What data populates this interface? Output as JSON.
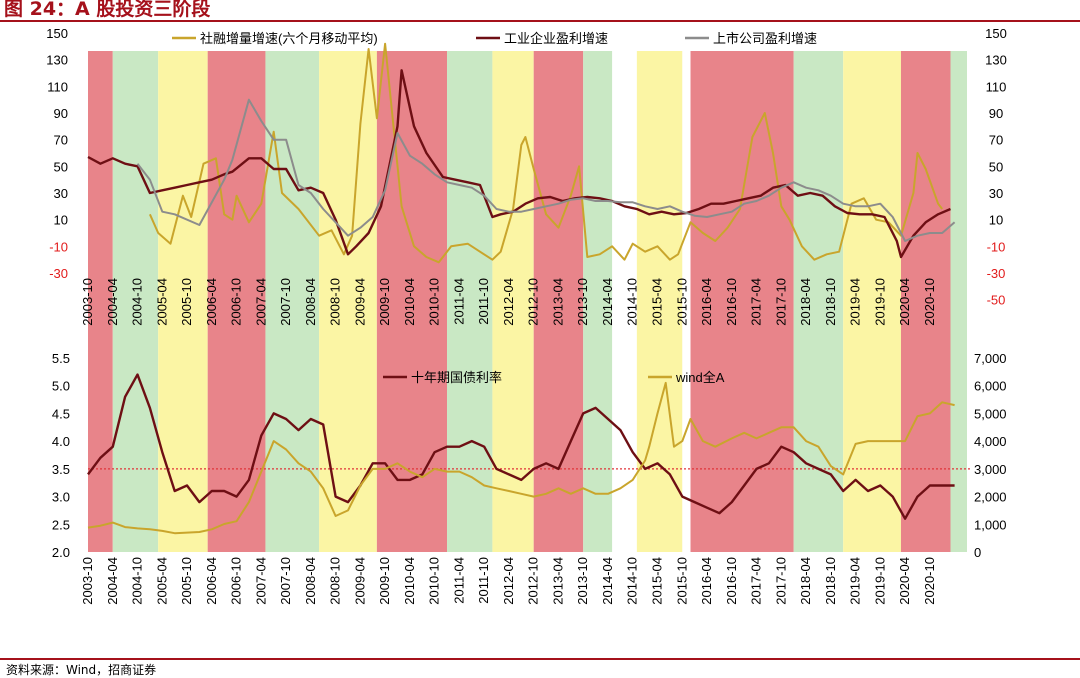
{
  "title": "图 24：A 股投资三阶段",
  "source": "资料来源：Wind，招商证券",
  "colors": {
    "red": "#e8848a",
    "green": "#c9e8c4",
    "yellow": "#fbf5a4",
    "gold": "#c9a52c",
    "maroon": "#6e0f14",
    "gray": "#8c8c8c"
  },
  "chart_data": [
    {
      "type": "line",
      "panel": "top",
      "yleft": {
        "min": -30,
        "max": 150,
        "ticks": [
          "150",
          "130",
          "110",
          "90",
          "70",
          "50",
          "30",
          "10",
          "-10",
          "-30"
        ]
      },
      "yright": {
        "ticks": [
          "150",
          "130",
          "110",
          "90",
          "70",
          "50",
          "30",
          "10",
          "-10",
          "-30",
          "-50"
        ]
      },
      "x_ticks": [
        "2003-10",
        "2004-04",
        "2004-10",
        "2005-04",
        "2005-10",
        "2006-04",
        "2006-10",
        "2007-04",
        "2007-10",
        "2008-04",
        "2008-10",
        "2009-04",
        "2009-10",
        "2010-04",
        "2010-10",
        "2011-04",
        "2011-10",
        "2012-04",
        "2012-10",
        "2013-04",
        "2013-10",
        "2014-04",
        "2014-10",
        "2015-04",
        "2015-10",
        "2016-04",
        "2016-10",
        "2017-04",
        "2017-10",
        "2018-04",
        "2018-10",
        "2019-04",
        "2019-10",
        "2020-04",
        "2020-10"
      ],
      "phases": [
        {
          "start": "2003-10",
          "end": "2004-04",
          "color": "red"
        },
        {
          "start": "2004-04",
          "end": "2005-03",
          "color": "green"
        },
        {
          "start": "2005-03",
          "end": "2006-03",
          "color": "yellow"
        },
        {
          "start": "2006-03",
          "end": "2007-05",
          "color": "red"
        },
        {
          "start": "2007-05",
          "end": "2008-06",
          "color": "green"
        },
        {
          "start": "2008-06",
          "end": "2009-08",
          "color": "yellow"
        },
        {
          "start": "2009-08",
          "end": "2011-01",
          "color": "red"
        },
        {
          "start": "2011-01",
          "end": "2011-12",
          "color": "green"
        },
        {
          "start": "2011-12",
          "end": "2012-10",
          "color": "yellow"
        },
        {
          "start": "2012-10",
          "end": "2013-10",
          "color": "red"
        },
        {
          "start": "2013-10",
          "end": "2014-05",
          "color": "green"
        },
        {
          "start": "2014-11",
          "end": "2015-10",
          "color": "yellow"
        },
        {
          "start": "2015-12",
          "end": "2018-01",
          "color": "red"
        },
        {
          "start": "2018-01",
          "end": "2019-01",
          "color": "green"
        },
        {
          "start": "2019-01",
          "end": "2020-03",
          "color": "yellow"
        },
        {
          "start": "2020-03",
          "end": "2021-03",
          "color": "red"
        },
        {
          "start": "2021-03",
          "end": "2021-07",
          "color": "green"
        }
      ],
      "series": [
        {
          "name": "社融增量增速(六个月移动平均)",
          "color": "gold",
          "axis": "left",
          "x": [
            "2005-01",
            "2005-03",
            "2005-06",
            "2005-09",
            "2005-11",
            "2006-02",
            "2006-05",
            "2006-07",
            "2006-09",
            "2006-10",
            "2007-01",
            "2007-04",
            "2007-07",
            "2007-09",
            "2008-01",
            "2008-06",
            "2008-09",
            "2008-12",
            "2009-02",
            "2009-04",
            "2009-06",
            "2009-08",
            "2009-10",
            "2010-02",
            "2010-05",
            "2010-08",
            "2010-11",
            "2011-02",
            "2011-06",
            "2011-09",
            "2011-12",
            "2012-02",
            "2012-05",
            "2012-07",
            "2012-08",
            "2012-10",
            "2013-01",
            "2013-04",
            "2013-07",
            "2013-09",
            "2013-11",
            "2014-02",
            "2014-05",
            "2014-08",
            "2014-10",
            "2015-01",
            "2015-04",
            "2015-07",
            "2015-09",
            "2015-12",
            "2016-03",
            "2016-06",
            "2016-09",
            "2016-12",
            "2017-03",
            "2017-06",
            "2017-08",
            "2017-10",
            "2017-12",
            "2018-03",
            "2018-06",
            "2018-09",
            "2018-12",
            "2019-03",
            "2019-06",
            "2019-09",
            "2019-12",
            "2020-03",
            "2020-06",
            "2020-07",
            "2020-09",
            "2020-12",
            "2021-01"
          ],
          "y": [
            14,
            0,
            -8,
            28,
            12,
            52,
            56,
            14,
            10,
            28,
            8,
            22,
            76,
            30,
            18,
            -2,
            2,
            -16,
            -2,
            82,
            138,
            86,
            142,
            20,
            -10,
            -18,
            -22,
            -10,
            -8,
            -14,
            -20,
            -14,
            18,
            66,
            72,
            48,
            14,
            4,
            28,
            50,
            -18,
            -16,
            -10,
            -20,
            -8,
            -14,
            -10,
            -20,
            -16,
            8,
            0,
            -6,
            4,
            18,
            72,
            90,
            60,
            20,
            10,
            -10,
            -20,
            -16,
            -14,
            22,
            26,
            10,
            8,
            -2,
            30,
            60,
            48,
            22,
            18
          ]
        },
        {
          "name": "工业企业盈利增速",
          "color": "maroon",
          "axis": "left",
          "x": [
            "2003-10",
            "2004-01",
            "2004-04",
            "2004-07",
            "2004-10",
            "2005-01",
            "2005-04",
            "2005-07",
            "2005-10",
            "2006-01",
            "2006-04",
            "2006-07",
            "2006-09",
            "2007-01",
            "2007-04",
            "2007-07",
            "2007-10",
            "2008-01",
            "2008-04",
            "2008-07",
            "2008-10",
            "2009-01",
            "2009-03",
            "2009-06",
            "2009-09",
            "2010-01",
            "2010-02",
            "2010-05",
            "2010-08",
            "2010-12",
            "2011-03",
            "2011-06",
            "2011-09",
            "2011-12",
            "2012-02",
            "2012-05",
            "2012-08",
            "2012-11",
            "2013-02",
            "2013-05",
            "2013-08",
            "2013-11",
            "2014-02",
            "2014-05",
            "2014-08",
            "2014-11",
            "2015-02",
            "2015-05",
            "2015-08",
            "2015-11",
            "2016-02",
            "2016-05",
            "2016-08",
            "2016-11",
            "2017-02",
            "2017-05",
            "2017-08",
            "2017-11",
            "2018-02",
            "2018-05",
            "2018-08",
            "2018-11",
            "2019-02",
            "2019-05",
            "2019-08",
            "2019-11",
            "2020-02",
            "2020-03",
            "2020-06",
            "2020-09",
            "2020-12",
            "2021-03"
          ],
          "y": [
            57,
            52,
            56,
            52,
            50,
            30,
            32,
            34,
            36,
            38,
            40,
            44,
            46,
            56,
            56,
            48,
            48,
            32,
            34,
            30,
            10,
            -16,
            -10,
            0,
            20,
            80,
            122,
            80,
            60,
            42,
            40,
            38,
            36,
            12,
            14,
            16,
            22,
            26,
            27,
            24,
            26,
            27,
            26,
            24,
            20,
            18,
            14,
            16,
            14,
            15,
            18,
            22,
            22,
            24,
            26,
            28,
            34,
            36,
            28,
            30,
            28,
            20,
            15,
            14,
            14,
            12,
            -6,
            -18,
            -2,
            8,
            14,
            18
          ]
        },
        {
          "name": "上市公司盈利增速",
          "color": "gray",
          "axis": "left",
          "x": [
            "2004-10",
            "2005-01",
            "2005-04",
            "2005-07",
            "2006-01",
            "2006-07",
            "2006-09",
            "2007-01",
            "2007-04",
            "2007-07",
            "2007-10",
            "2008-01",
            "2008-04",
            "2008-07",
            "2008-10",
            "2009-01",
            "2009-04",
            "2009-07",
            "2009-10",
            "2010-01",
            "2010-04",
            "2010-07",
            "2010-10",
            "2011-01",
            "2011-04",
            "2011-07",
            "2011-10",
            "2012-01",
            "2012-04",
            "2012-07",
            "2012-10",
            "2013-01",
            "2013-04",
            "2013-07",
            "2013-10",
            "2014-01",
            "2014-04",
            "2014-07",
            "2014-10",
            "2015-01",
            "2015-04",
            "2015-07",
            "2015-10",
            "2016-01",
            "2016-04",
            "2016-07",
            "2016-10",
            "2017-01",
            "2017-04",
            "2017-07",
            "2017-10",
            "2018-01",
            "2018-04",
            "2018-07",
            "2018-10",
            "2019-01",
            "2019-04",
            "2019-07",
            "2019-10",
            "2020-01",
            "2020-04",
            "2020-07",
            "2020-10",
            "2021-01",
            "2021-04"
          ],
          "y": [
            52,
            40,
            16,
            14,
            6,
            40,
            55,
            100,
            84,
            70,
            70,
            36,
            30,
            18,
            8,
            -2,
            4,
            12,
            32,
            75,
            58,
            52,
            44,
            38,
            36,
            34,
            28,
            18,
            16,
            16,
            18,
            20,
            22,
            25,
            26,
            24,
            24,
            23,
            23,
            20,
            18,
            20,
            16,
            13,
            12,
            14,
            16,
            22,
            24,
            28,
            34,
            38,
            34,
            32,
            28,
            22,
            20,
            20,
            22,
            12,
            -6,
            -2,
            0,
            0,
            8
          ]
        }
      ]
    },
    {
      "type": "line",
      "panel": "bottom",
      "yleft": {
        "min": 2.0,
        "max": 5.5,
        "ticks": [
          "5.5",
          "5.0",
          "4.5",
          "4.0",
          "3.5",
          "3.0",
          "2.5",
          "2.0"
        ]
      },
      "yright": {
        "min": 0,
        "max": 7000,
        "ticks": [
          "7,000",
          "6,000",
          "5,000",
          "4,000",
          "3,000",
          "2,000",
          "1,000",
          "0"
        ]
      },
      "reference_line": 3.5,
      "x_ticks": [
        "2003-10",
        "2004-04",
        "2004-10",
        "2005-04",
        "2005-10",
        "2006-04",
        "2006-10",
        "2007-04",
        "2007-10",
        "2008-04",
        "2008-10",
        "2009-04",
        "2009-10",
        "2010-04",
        "2010-10",
        "2011-04",
        "2011-10",
        "2012-04",
        "2012-10",
        "2013-04",
        "2013-10",
        "2014-04",
        "2014-10",
        "2015-04",
        "2015-10",
        "2016-04",
        "2016-10",
        "2017-04",
        "2017-10",
        "2018-04",
        "2018-10",
        "2019-04",
        "2019-10",
        "2020-04",
        "2020-10"
      ],
      "series": [
        {
          "name": "十年期国债利率",
          "color": "maroon",
          "axis": "left",
          "x": [
            "2003-10",
            "2004-01",
            "2004-04",
            "2004-07",
            "2004-10",
            "2005-01",
            "2005-04",
            "2005-07",
            "2005-10",
            "2006-01",
            "2006-04",
            "2006-07",
            "2006-10",
            "2007-01",
            "2007-04",
            "2007-07",
            "2007-10",
            "2008-01",
            "2008-04",
            "2008-07",
            "2008-10",
            "2009-01",
            "2009-04",
            "2009-07",
            "2009-10",
            "2010-01",
            "2010-04",
            "2010-07",
            "2010-10",
            "2011-01",
            "2011-04",
            "2011-07",
            "2011-10",
            "2012-01",
            "2012-04",
            "2012-07",
            "2012-10",
            "2013-01",
            "2013-04",
            "2013-07",
            "2013-10",
            "2014-01",
            "2014-04",
            "2014-07",
            "2014-10",
            "2015-01",
            "2015-04",
            "2015-07",
            "2015-10",
            "2016-01",
            "2016-04",
            "2016-07",
            "2016-10",
            "2017-01",
            "2017-04",
            "2017-07",
            "2017-10",
            "2018-01",
            "2018-04",
            "2018-07",
            "2018-10",
            "2019-01",
            "2019-04",
            "2019-07",
            "2019-10",
            "2020-01",
            "2020-04",
            "2020-07",
            "2020-10",
            "2021-01",
            "2021-04"
          ],
          "y": [
            3.4,
            3.7,
            3.9,
            4.8,
            5.2,
            4.6,
            3.8,
            3.1,
            3.2,
            2.9,
            3.1,
            3.1,
            3.0,
            3.3,
            4.1,
            4.5,
            4.4,
            4.2,
            4.4,
            4.3,
            3.0,
            2.9,
            3.2,
            3.6,
            3.6,
            3.3,
            3.3,
            3.4,
            3.8,
            3.9,
            3.9,
            4.0,
            3.9,
            3.5,
            3.4,
            3.3,
            3.5,
            3.6,
            3.5,
            4.0,
            4.5,
            4.6,
            4.4,
            4.2,
            3.8,
            3.5,
            3.6,
            3.4,
            3.0,
            2.9,
            2.8,
            2.7,
            2.9,
            3.2,
            3.5,
            3.6,
            3.9,
            3.8,
            3.6,
            3.5,
            3.4,
            3.1,
            3.3,
            3.1,
            3.2,
            3.0,
            2.6,
            3.0,
            3.2,
            3.2,
            3.2
          ]
        },
        {
          "name": "wind全A",
          "color": "gold",
          "axis": "right",
          "x": [
            "2003-10",
            "2004-01",
            "2004-04",
            "2004-07",
            "2004-10",
            "2005-01",
            "2005-04",
            "2005-07",
            "2005-10",
            "2006-01",
            "2006-04",
            "2006-07",
            "2006-10",
            "2007-01",
            "2007-04",
            "2007-07",
            "2007-10",
            "2008-01",
            "2008-04",
            "2008-07",
            "2008-10",
            "2009-01",
            "2009-04",
            "2009-07",
            "2009-10",
            "2010-01",
            "2010-04",
            "2010-07",
            "2010-10",
            "2011-01",
            "2011-04",
            "2011-07",
            "2011-10",
            "2012-01",
            "2012-04",
            "2012-07",
            "2012-10",
            "2013-01",
            "2013-04",
            "2013-07",
            "2013-10",
            "2014-01",
            "2014-04",
            "2014-07",
            "2014-10",
            "2015-01",
            "2015-02",
            "2015-04",
            "2015-06",
            "2015-08",
            "2015-10",
            "2015-12",
            "2016-03",
            "2016-06",
            "2016-10",
            "2017-01",
            "2017-04",
            "2017-07",
            "2017-10",
            "2018-01",
            "2018-04",
            "2018-07",
            "2018-10",
            "2019-01",
            "2019-04",
            "2019-07",
            "2019-10",
            "2020-01",
            "2020-04",
            "2020-07",
            "2020-10",
            "2021-01",
            "2021-04"
          ],
          "y": [
            880,
            950,
            1060,
            900,
            850,
            820,
            760,
            680,
            700,
            720,
            820,
            1010,
            1110,
            1800,
            2900,
            4000,
            3700,
            3200,
            2900,
            2300,
            1300,
            1500,
            2400,
            3000,
            3000,
            3200,
            2900,
            2700,
            3000,
            2900,
            2900,
            2700,
            2400,
            2300,
            2200,
            2100,
            2000,
            2100,
            2300,
            2100,
            2300,
            2100,
            2100,
            2300,
            2600,
            3300,
            3800,
            5000,
            6100,
            3800,
            4000,
            4800,
            4000,
            3800,
            4100,
            4300,
            4100,
            4300,
            4500,
            4500,
            4000,
            3800,
            3100,
            2800,
            3900,
            4000,
            4000,
            4000,
            4000,
            4900,
            5000,
            5400,
            5300
          ]
        }
      ]
    }
  ],
  "legend": {
    "top": [
      "社融增量增速(六个月移动平均)",
      "工业企业盈利增速",
      "上市公司盈利增速"
    ],
    "bottom": [
      "十年期国债利率",
      "wind全A"
    ]
  }
}
